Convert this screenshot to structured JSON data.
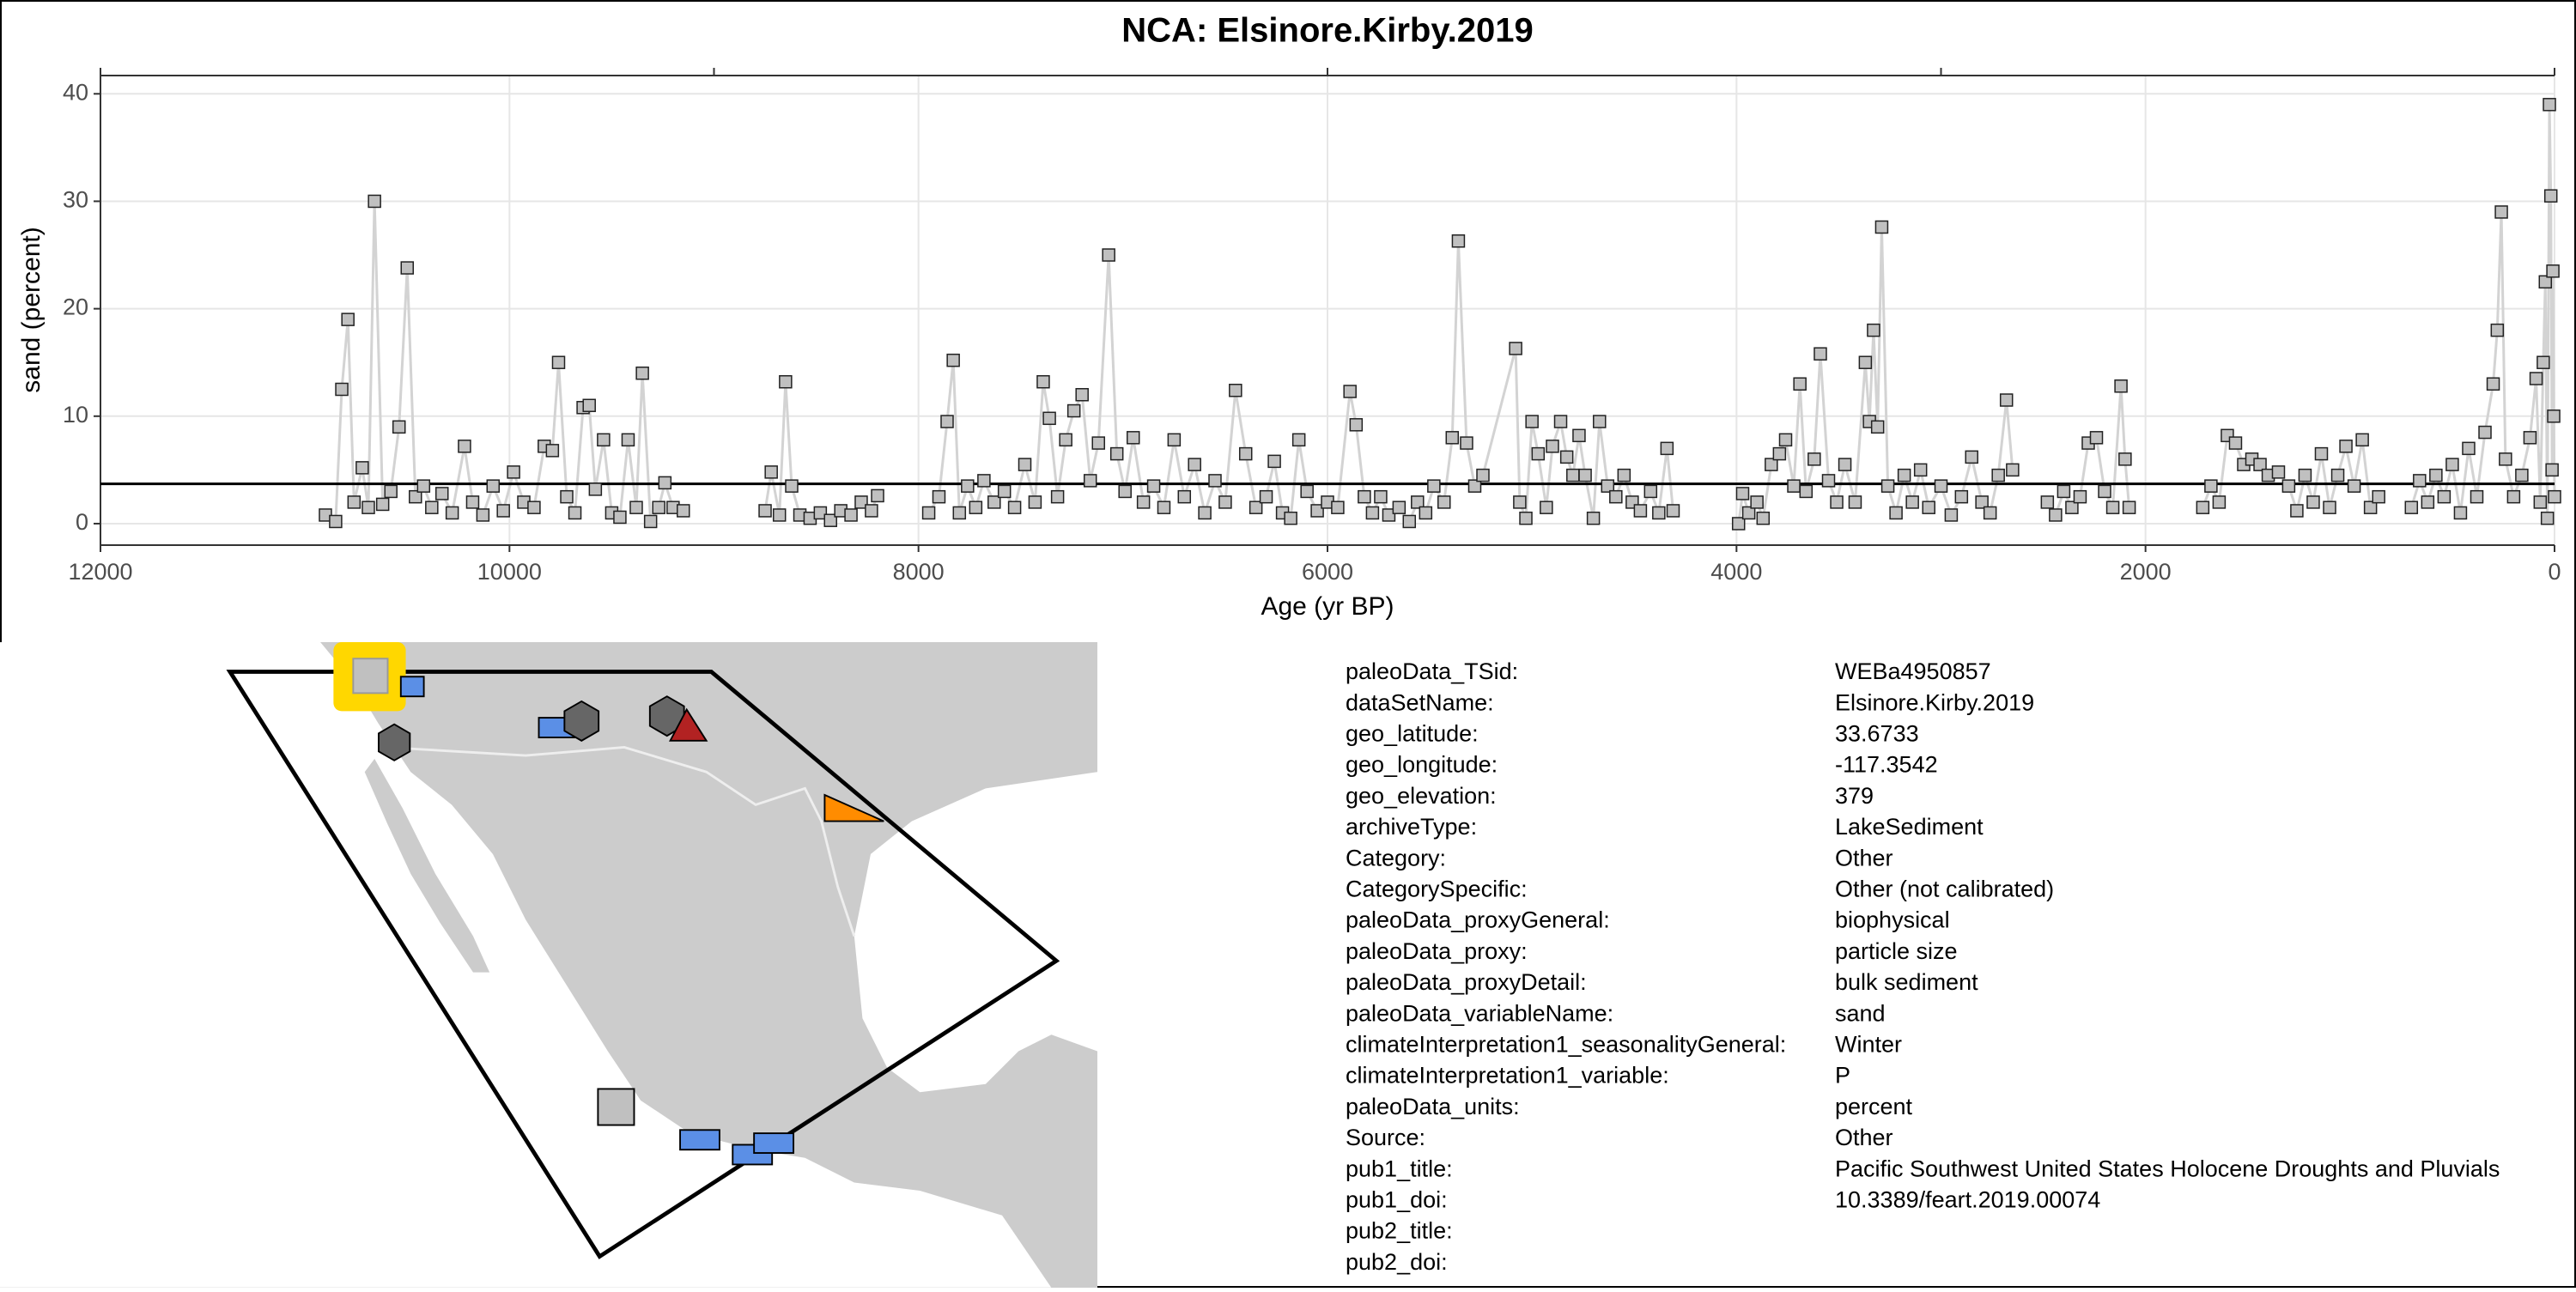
{
  "chart_data": {
    "type": "line",
    "title": "NCA: Elsinore.Kirby.2019",
    "xlabel": "Age (yr BP)",
    "ylabel": "sand (percent)",
    "xlim": [
      12000,
      0
    ],
    "ylim": [
      -2,
      41.7
    ],
    "xticks": [
      12000,
      10000,
      8000,
      6000,
      4000,
      2000,
      0
    ],
    "top_xticks": [
      12000,
      9000,
      6000,
      3000,
      0
    ],
    "yticks": [
      0,
      10,
      20,
      30,
      40
    ],
    "grid": true,
    "hline": 3.7,
    "line_color": "#d3d3d3",
    "marker_color": "#c0c0c0",
    "x": [
      10900,
      10850,
      10820,
      10790,
      10760,
      10720,
      10690,
      10660,
      10620,
      10580,
      10540,
      10500,
      10460,
      10420,
      10380,
      10330,
      10280,
      10220,
      10180,
      10130,
      10080,
      10030,
      9980,
      9930,
      9880,
      9830,
      9790,
      9760,
      9720,
      9680,
      9640,
      9610,
      9580,
      9540,
      9500,
      9460,
      9420,
      9380,
      9350,
      9310,
      9270,
      9240,
      9200,
      9150,
      null,
      8750,
      8720,
      8680,
      8650,
      8620,
      8580,
      8530,
      8480,
      8430,
      8380,
      8330,
      8280,
      8230,
      8200,
      null,
      7950,
      7900,
      7860,
      7830,
      7800,
      7760,
      7720,
      7680,
      7630,
      7580,
      7530,
      7480,
      7430,
      7390,
      7360,
      7320,
      7280,
      7240,
      7200,
      7160,
      7120,
      7070,
      7030,
      6990,
      6950,
      6900,
      6850,
      6800,
      6750,
      6700,
      6650,
      6600,
      6550,
      6500,
      6450,
      6400,
      6350,
      6300,
      6260,
      6220,
      6180,
      6140,
      6100,
      6050,
      6000,
      5950,
      5890,
      5860,
      5820,
      5780,
      5740,
      5700,
      5650,
      5600,
      5560,
      5520,
      5480,
      5430,
      5390,
      5360,
      5320,
      5280,
      5240,
      5080,
      5060,
      5030,
      5000,
      4970,
      4930,
      4900,
      4860,
      4830,
      4800,
      4770,
      4740,
      4700,
      4670,
      4630,
      4590,
      4550,
      4510,
      4470,
      4420,
      4380,
      4340,
      4310,
      null,
      3990,
      3970,
      3940,
      3900,
      3870,
      3830,
      3790,
      3760,
      3720,
      3690,
      3660,
      3620,
      3590,
      3550,
      3510,
      3470,
      3420,
      3370,
      3350,
      3330,
      3310,
      3290,
      3260,
      3220,
      3180,
      3140,
      3100,
      3060,
      3000,
      2950,
      2900,
      2850,
      2800,
      2760,
      2720,
      2680,
      2650,
      null,
      2480,
      2440,
      2400,
      2360,
      2320,
      2280,
      2240,
      2200,
      2160,
      2120,
      2100,
      2080,
      null,
      1720,
      1680,
      1640,
      1600,
      1560,
      1520,
      1480,
      1440,
      1400,
      1350,
      1300,
      1260,
      1220,
      1180,
      1140,
      1100,
      1060,
      1020,
      980,
      940,
      900,
      860,
      null,
      700,
      660,
      620,
      580,
      540,
      500,
      460,
      420,
      380,
      340,
      300,
      280,
      260,
      240,
      200,
      160,
      120,
      90,
      70,
      55,
      45,
      35,
      25,
      18,
      12,
      8,
      4,
      0
    ],
    "values": [
      0.8,
      0.2,
      12.5,
      19,
      2,
      5.2,
      1.5,
      30,
      1.8,
      3,
      9,
      23.8,
      2.5,
      3.5,
      1.5,
      2.8,
      1,
      7.2,
      2,
      0.8,
      3.5,
      1.2,
      4.8,
      2,
      1.5,
      7.2,
      6.8,
      15,
      2.5,
      1,
      10.8,
      11,
      3.2,
      7.8,
      1,
      0.6,
      7.8,
      1.5,
      14,
      0.2,
      1.5,
      3.8,
      1.5,
      1.2,
      null,
      1.2,
      4.8,
      0.8,
      13.2,
      3.5,
      0.8,
      0.5,
      1,
      0.3,
      1.2,
      0.8,
      2,
      1.2,
      2.6,
      null,
      1,
      2.5,
      9.5,
      15.2,
      1,
      3.5,
      1.5,
      4,
      2,
      3,
      1.5,
      5.5,
      2,
      13.2,
      9.8,
      2.5,
      7.8,
      10.5,
      12,
      4,
      7.5,
      25,
      6.5,
      3,
      8,
      2,
      3.5,
      1.5,
      7.8,
      2.5,
      5.5,
      1,
      4,
      2,
      12.4,
      6.5,
      1.5,
      2.5,
      5.8,
      1,
      0.5,
      7.8,
      3,
      1.2,
      2,
      1.5,
      12.3,
      9.2,
      2.5,
      1,
      2.5,
      0.8,
      1.5,
      0.2,
      2,
      1,
      3.5,
      2,
      8,
      26.3,
      7.5,
      3.5,
      4.5,
      16.3,
      2,
      0.5,
      9.5,
      6.5,
      1.5,
      7.2,
      9.5,
      6.2,
      4.5,
      8.2,
      4.5,
      0.5,
      9.5,
      3.5,
      2.5,
      4.5,
      2,
      1.2,
      3,
      1,
      7,
      1.2,
      null,
      0,
      2.8,
      1,
      2,
      0.5,
      5.5,
      6.5,
      7.8,
      3.5,
      13,
      3,
      6,
      15.8,
      4,
      2,
      5.5,
      2,
      15,
      9.5,
      18,
      9,
      27.6,
      3.5,
      1,
      4.5,
      2,
      5,
      1.5,
      3.5,
      0.8,
      2.5,
      6.2,
      2,
      1,
      4.5,
      11.5,
      5,
      null,
      2,
      0.8,
      3,
      1.5,
      2.5,
      7.5,
      8,
      3,
      1.5,
      12.8,
      6,
      1.5,
      null,
      1.5,
      3.5,
      2,
      8.2,
      7.5,
      5.5,
      6,
      5.5,
      4.5,
      4.8,
      3.5,
      1.2,
      4.5,
      2,
      6.5,
      1.5,
      4.5,
      7.2,
      3.5,
      7.8,
      1.5,
      2.5,
      null,
      1.5,
      4,
      2,
      4.5,
      2.5,
      5.5,
      1,
      7,
      2.5,
      8.5,
      13,
      18,
      29,
      6,
      2.5,
      4.5,
      8,
      13.5,
      2,
      15,
      22.5,
      0.5,
      39,
      30.5,
      5,
      23.5,
      10,
      2.5
    ]
  },
  "metadata": {
    "rows": [
      [
        "paleoData_TSid:",
        "WEBa4950857"
      ],
      [
        "dataSetName:",
        "Elsinore.Kirby.2019"
      ],
      [
        "geo_latitude:",
        "33.6733"
      ],
      [
        "geo_longitude:",
        "-117.3542"
      ],
      [
        "geo_elevation:",
        "379"
      ],
      [
        "archiveType:",
        "LakeSediment"
      ],
      [
        "Category:",
        "Other"
      ],
      [
        "CategorySpecific:",
        "Other (not calibrated)"
      ],
      [
        "paleoData_proxyGeneral:",
        "biophysical"
      ],
      [
        "paleoData_proxy:",
        "particle size"
      ],
      [
        "paleoData_proxyDetail:",
        "bulk sediment"
      ],
      [
        "paleoData_variableName:",
        "sand"
      ],
      [
        "climateInterpretation1_seasonalityGeneral:",
        "Winter"
      ],
      [
        "climateInterpretation1_variable:",
        "P"
      ],
      [
        "paleoData_units:",
        "percent"
      ],
      [
        "Source:",
        "Other"
      ],
      [
        "pub1_title:",
        "Pacific Southwest United States Holocene Droughts and Pluvials"
      ],
      [
        "pub1_doi:",
        "10.3389/feart.2019.00074"
      ],
      [
        "pub2_title:"
      ],
      [
        "pub2_doi:"
      ]
    ]
  }
}
